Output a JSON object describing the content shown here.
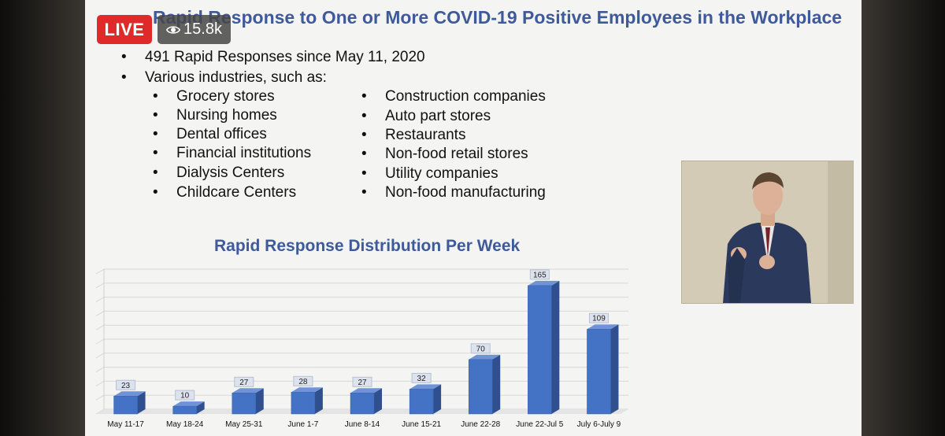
{
  "stream": {
    "live_label": "LIVE",
    "viewer_count": "15.8k",
    "viewer_icon": "eye-icon",
    "live_color": "#e02a2a"
  },
  "slide": {
    "title": "Rapid Response to One or More COVID-19 Positive Employees in the Workplace",
    "bullet_1": "491 Rapid Responses since May 11, 2020",
    "bullet_2": "Various industries, such as:",
    "industries_left": [
      "Grocery stores",
      "Nursing homes",
      "Dental offices",
      "Financial institutions",
      "Dialysis Centers",
      "Childcare Centers"
    ],
    "industries_right": [
      "Construction companies",
      "Auto part stores",
      "Restaurants",
      "Non-food retail stores",
      "Utility companies",
      "Non-food manufacturing"
    ],
    "title_color": "#3e5a9a"
  },
  "chart_data": {
    "type": "bar",
    "title": "Rapid Response Distribution Per Week",
    "categories": [
      "May 11-17",
      "May 18-24",
      "May 25-31",
      "June 1-7",
      "June 8-14",
      "June 15-21",
      "June 22-28",
      "June 22-Jul 5",
      "July 6-July 9"
    ],
    "values": [
      23,
      10,
      27,
      28,
      27,
      32,
      70,
      165,
      109
    ],
    "ylim": [
      0,
      180
    ],
    "grid": true,
    "bar_color": "#4472c4"
  }
}
